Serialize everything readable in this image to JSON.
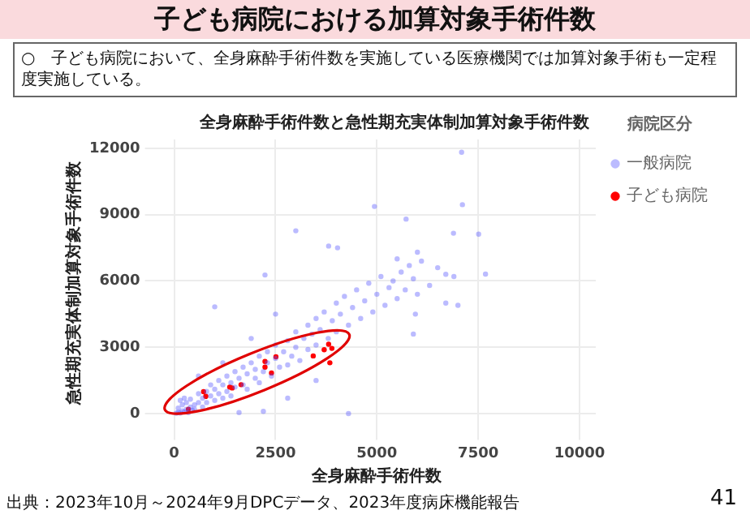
{
  "chart_data": {
    "type": "scatter",
    "title": "子ども病院における加算対象手術件数",
    "subtitle": "全身麻酔手術件数と急性期充実体制加算対象手術件数",
    "xlabel": "全身麻酔手術件数",
    "ylabel": "急性期充実体制加算対象手術件数",
    "legend_title": "病院区分",
    "annotations": [
      "○　子ども病院において、全身麻酔手術件数を実施している医療機関では加算対象手術も一定程度実施している。",
      "出典：2023年10月～2024年9月DPCデータ、2023年度病床機能報告",
      "41"
    ],
    "xlim": [
      -400,
      10400
    ],
    "ylim": [
      -600,
      12400
    ],
    "xticks": [
      0,
      2500,
      5000,
      7500,
      10000
    ],
    "yticks": [
      0,
      3000,
      6000,
      9000,
      12000
    ],
    "grid": true,
    "legend": "top right",
    "marker": "circle",
    "series": [
      {
        "name": "一般病院",
        "color": "#5555ff",
        "x": [
          50,
          100,
          150,
          200,
          250,
          300,
          350,
          400,
          450,
          500,
          100,
          200,
          300,
          150,
          250,
          400,
          500,
          600,
          600,
          700,
          700,
          800,
          800,
          900,
          900,
          1000,
          1000,
          1100,
          1100,
          1200,
          1200,
          1300,
          1300,
          1400,
          1400,
          1500,
          1500,
          1600,
          1700,
          1700,
          1800,
          1800,
          1900,
          2000,
          2000,
          2100,
          2100,
          2200,
          2300,
          2300,
          2400,
          2500,
          2500,
          2600,
          2700,
          2800,
          2800,
          2900,
          3000,
          3000,
          3100,
          3200,
          3300,
          3300,
          3400,
          3500,
          3500,
          3600,
          3700,
          3800,
          3900,
          4000,
          4000,
          4100,
          4200,
          4300,
          4400,
          4500,
          4600,
          4700,
          4800,
          4900,
          5000,
          5100,
          5200,
          5300,
          5400,
          5500,
          5600,
          5700,
          5800,
          5900,
          6000,
          6100,
          6300,
          6500,
          6700,
          6900,
          7000,
          7680,
          5720,
          6890,
          7510,
          7090,
          7110,
          3000,
          4940,
          3810,
          4030,
          2240,
          1000,
          4300,
          3500,
          2800,
          1600,
          2200,
          1200,
          600,
          1900,
          2500,
          5900,
          5950,
          6700,
          5500,
          6000
        ],
        "values": [
          20,
          60,
          30,
          120,
          80,
          200,
          50,
          300,
          150,
          400,
          250,
          400,
          500,
          600,
          700,
          650,
          200,
          500,
          900,
          300,
          700,
          1000,
          500,
          800,
          1300,
          600,
          1100,
          1500,
          900,
          700,
          1300,
          1700,
          1000,
          1400,
          800,
          1900,
          1200,
          1600,
          2100,
          1300,
          1800,
          1100,
          2300,
          1600,
          2000,
          2600,
          1400,
          1900,
          2800,
          2300,
          1700,
          2500,
          3100,
          2100,
          2800,
          3300,
          2200,
          2600,
          3000,
          3700,
          2400,
          3400,
          2900,
          4000,
          3600,
          3100,
          4300,
          3800,
          4600,
          3400,
          4200,
          5000,
          3700,
          4500,
          5300,
          4000,
          4800,
          5600,
          4300,
          5100,
          5900,
          4600,
          5400,
          6200,
          4900,
          5700,
          6000,
          5200,
          6400,
          5600,
          6700,
          6100,
          5400,
          6900,
          5800,
          6600,
          5000,
          6200,
          4900,
          6310,
          8800,
          8160,
          8120,
          11820,
          9450,
          8270,
          9370,
          7580,
          7500,
          6270,
          4830,
          0,
          1500,
          700,
          50,
          100,
          2300,
          1700,
          3400,
          4500,
          3600,
          4500,
          6300,
          7000,
          7300
        ]
      },
      {
        "name": "子ども病院",
        "color": "#ff0000",
        "x": [
          350,
          725,
          780,
          1370,
          1430,
          1650,
          2240,
          2240,
          2400,
          2510,
          3430,
          3700,
          3810,
          3890,
          3840
        ],
        "values": [
          200,
          990,
          780,
          1200,
          1160,
          1310,
          2360,
          2100,
          1840,
          2570,
          2610,
          2890,
          3140,
          2950,
          2300
        ]
      }
    ]
  }
}
